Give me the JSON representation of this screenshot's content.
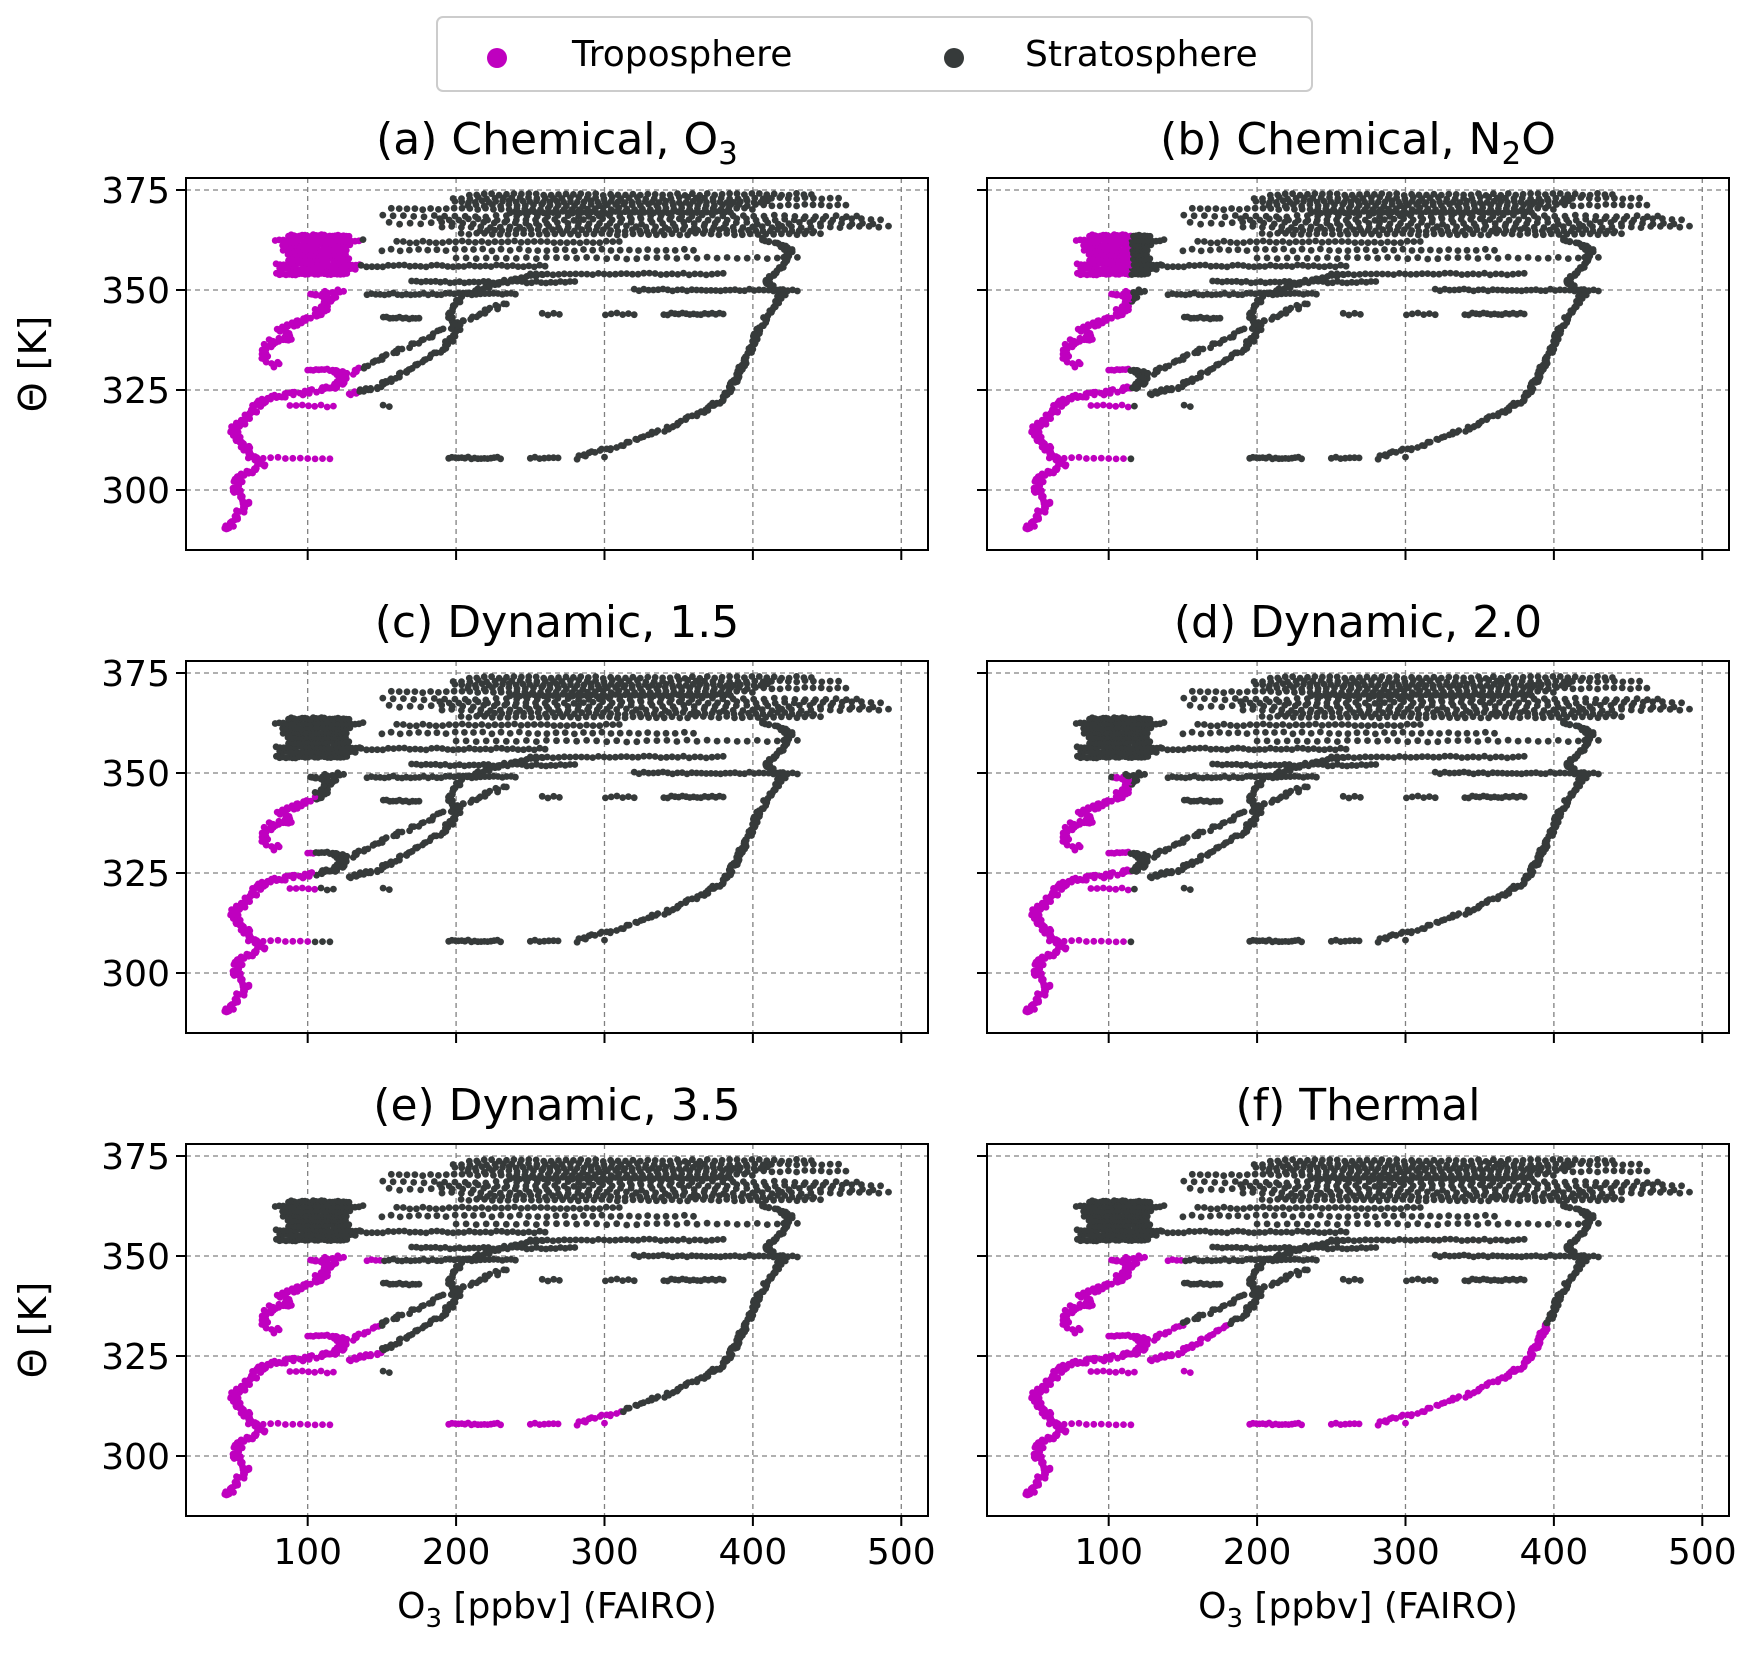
{
  "legend": {
    "entries": [
      {
        "label": "Troposphere",
        "color": "#bf00bf"
      },
      {
        "label": "Stratosphere",
        "color": "#363a3a"
      }
    ]
  },
  "colors": {
    "troposphere": "#bf00bf",
    "stratosphere": "#363a3a",
    "grid": "#808080"
  },
  "chart_data": [
    {
      "type": "scatter",
      "panel": "a",
      "title_main": "(a) Chemical, O",
      "title_sub": "3",
      "title_tail": "",
      "ylabel": "Θ [K]",
      "xlabel_main": "",
      "xlabel_sub": "",
      "xlabel_tail": "",
      "xticks": [
        100,
        200,
        300,
        400,
        500
      ],
      "yticks": [
        300,
        325,
        350,
        375
      ],
      "xlim": [
        18,
        518
      ],
      "ylim": [
        285,
        378
      ],
      "grid": true,
      "tropopause_theta": 350,
      "tropo_strat_o3": 135
    },
    {
      "type": "scatter",
      "panel": "b",
      "title_main": "(b) Chemical, N",
      "title_sub": "2",
      "title_tail": "O",
      "ylabel": "",
      "xlabel_main": "",
      "xlabel_sub": "",
      "xlabel_tail": "",
      "xticks": [
        100,
        200,
        300,
        400,
        500
      ],
      "yticks": [
        300,
        325,
        350,
        375
      ],
      "xlim": [
        18,
        518
      ],
      "ylim": [
        285,
        378
      ],
      "grid": true,
      "tropopause_theta": 350,
      "tropo_strat_o3": 115
    },
    {
      "type": "scatter",
      "panel": "c",
      "title_main": "(c) Dynamic, 1.5",
      "title_sub": "",
      "title_tail": "",
      "ylabel": "",
      "xlabel_main": "",
      "xlabel_sub": "",
      "xlabel_tail": "",
      "xticks": [
        100,
        200,
        300,
        400,
        500
      ],
      "yticks": [
        300,
        325,
        350,
        375
      ],
      "xlim": [
        18,
        518
      ],
      "ylim": [
        285,
        378
      ],
      "grid": true,
      "tropopause_theta": 348,
      "tropo_strat_o3": 105
    },
    {
      "type": "scatter",
      "panel": "d",
      "title_main": "(d) Dynamic, 2.0",
      "title_sub": "",
      "title_tail": "",
      "ylabel": "",
      "xlabel_main": "",
      "xlabel_sub": "",
      "xlabel_tail": "",
      "xticks": [
        100,
        200,
        300,
        400,
        500
      ],
      "yticks": [
        300,
        325,
        350,
        375
      ],
      "xlim": [
        18,
        518
      ],
      "ylim": [
        285,
        378
      ],
      "grid": true,
      "tropopause_theta": 349,
      "tropo_strat_o3": 115
    },
    {
      "type": "scatter",
      "panel": "e",
      "title_main": "(e) Dynamic, 3.5",
      "title_sub": "",
      "title_tail": "",
      "ylabel": "Θ [K]",
      "xlabel_main": "O",
      "xlabel_sub": "3",
      "xlabel_tail": " [ppbv] (FAIRO)",
      "xticks": [
        100,
        200,
        300,
        400,
        500
      ],
      "yticks": [
        300,
        325,
        350,
        375
      ],
      "xlim": [
        18,
        518
      ],
      "ylim": [
        285,
        378
      ],
      "grid": true,
      "tropopause_theta": 350,
      "tropo_strat_o3": 310
    },
    {
      "type": "scatter",
      "panel": "f",
      "title_main": "(f) Thermal",
      "title_sub": "",
      "title_tail": "",
      "ylabel": "",
      "xlabel_main": "O",
      "xlabel_sub": "3",
      "xlabel_tail": " [ppbv] (FAIRO)",
      "xticks": [
        100,
        200,
        300,
        400,
        500
      ],
      "yticks": [
        300,
        325,
        350,
        375
      ],
      "xlim": [
        18,
        518
      ],
      "ylim": [
        285,
        378
      ],
      "grid": true,
      "tropopause_theta": 350,
      "tropo_strat_o3": 400
    }
  ]
}
